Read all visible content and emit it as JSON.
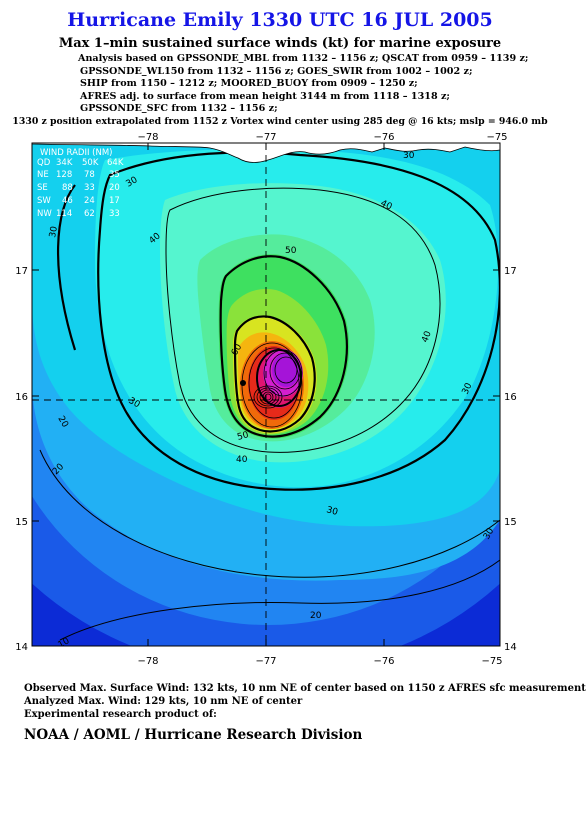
{
  "header": {
    "title": "Hurricane Emily 1330 UTC 16 JUL 2005",
    "subtitle": "Max 1–min sustained surface winds (kt) for marine exposure",
    "analysis_lines": [
      "Analysis based on  GPSSONDE_MBL from 1132 – 1156 z;  QSCAT from 0959 – 1139 z;",
      "GPSSONDE_WL150 from 1132 – 1156 z;  GOES_SWIR from 1002 – 1002 z;",
      "SHIP from 1150 – 1212 z;  MOORED_BUOY from 0909 – 1250 z;",
      "AFRES adj. to surface from mean height 3144 m from 1118 – 1318 z;",
      "GPSSONDE_SFC from 1132 – 1156 z;"
    ],
    "position_note": "1330 z position extrapolated from 1152 z Vortex wind center using 285 deg @ 16 kts; mslp = 946.0 mb"
  },
  "map": {
    "lon_ticks": [
      "−78",
      "−77",
      "−76",
      "−75"
    ],
    "lat_ticks": [
      "17",
      "16",
      "15",
      "14"
    ],
    "lon_range": [
      -79,
      -75
    ],
    "lat_range": [
      14,
      18
    ],
    "center": {
      "lon": -76.95,
      "lat": 15.95
    },
    "contour_labels": [
      "30",
      "40",
      "50",
      "60",
      "30",
      "40",
      "30",
      "40",
      "30",
      "50",
      "40",
      "30",
      "30",
      "30",
      "20",
      "20",
      "10",
      "20"
    ],
    "colors": {
      "c10": "#0c2bd6",
      "c15": "#1a5ae8",
      "c20": "#2185f2",
      "c25": "#22b0f4",
      "c30": "#14d0ee",
      "c35": "#27ecec",
      "c40": "#55f5cf",
      "c45": "#55ec9c",
      "c50": "#3ee060",
      "c55": "#8ae23a",
      "c60": "#d8e420",
      "c65": "#f5b50f",
      "c70": "#f06a0a",
      "c80": "#e62a1a",
      "c90": "#e01470",
      "c100": "#d31fcf",
      "c110": "#a514d8",
      "land": "#ffffff"
    }
  },
  "wind_radii": {
    "title": "WIND RADII (NM)",
    "header": [
      "QD",
      "34K",
      "50K",
      "64K"
    ],
    "rows": [
      [
        "NE",
        "128",
        "78",
        "35"
      ],
      [
        "SE",
        "88",
        "33",
        "20"
      ],
      [
        "SW",
        "46",
        "24",
        "17"
      ],
      [
        "NW",
        "114",
        "62",
        "33"
      ]
    ]
  },
  "footer": {
    "observed": "Observed Max. Surface Wind: 132 kts, 10 nm NE of center based on 1150 z AFRES sfc measurement",
    "analyzed": "Analyzed Max. Wind: 129 kts, 10 nm NE of center",
    "experimental": "Experimental research product of:",
    "division": "NOAA / AOML / Hurricane Research Division"
  }
}
